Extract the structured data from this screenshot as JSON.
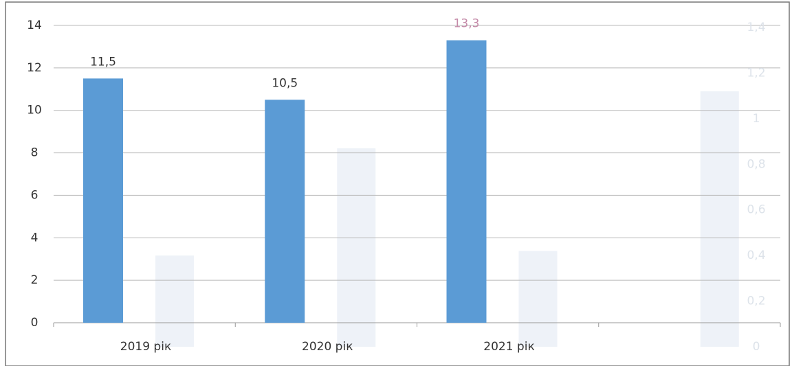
{
  "chart_data": {
    "type": "bar",
    "categories": [
      "2019 рік",
      "2020 рік",
      "2021 рік",
      null
    ],
    "series": [
      {
        "color": "#5b9bd5",
        "values": [
          11.5,
          10.5,
          13.3,
          null
        ],
        "value_labels": [
          "11,5",
          "10,5",
          "13,3",
          null
        ]
      },
      {
        "color": "#eef2f8",
        "axis": "y2",
        "values": [
          0.4,
          0.87,
          0.42,
          1.12
        ]
      }
    ],
    "ylim": [
      0,
      14
    ],
    "yticks": [
      0,
      2,
      4,
      6,
      8,
      10,
      12,
      14
    ],
    "y2lim": [
      0,
      1.4
    ],
    "y2ticks": [
      0,
      {
        "value": 0.2,
        "label": "0,2"
      },
      {
        "value": 0.4,
        "label": "0,4"
      },
      {
        "value": 0.6,
        "label": "0,6"
      },
      {
        "value": 0.8,
        "label": "0,8"
      },
      1,
      {
        "value": 1.2,
        "label": "1,2"
      },
      {
        "value": 1.4,
        "label": "1,4"
      }
    ],
    "grid": true
  }
}
